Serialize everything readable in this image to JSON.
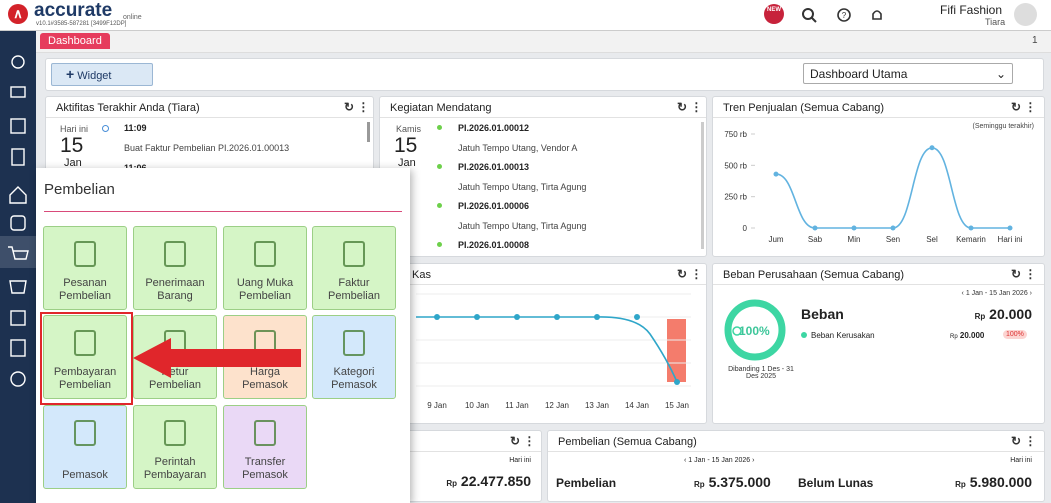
{
  "topbar": {
    "brand": "accurate",
    "brand_sub": "online",
    "version": "v10.1#3585-587281 [3499F12DP]",
    "badge": "NEW",
    "company": "Fifi Fashion",
    "user": "Tiara"
  },
  "tabs": {
    "active": "Dashboard",
    "page": "1"
  },
  "toolbar": {
    "widget_button": "Widget",
    "dashboard_select": "Dashboard Utama"
  },
  "activity": {
    "title": "Aktifitas Terakhir Anda (Tiara)",
    "day_label": "Hari ini",
    "day": "15",
    "month": "Jan",
    "items": [
      {
        "time": "11:09",
        "text": "Buat Faktur Pembelian PI.2026.01.00013"
      },
      {
        "time": "11:06"
      }
    ]
  },
  "schedule": {
    "title": "Kegiatan Mendatang",
    "day_label": "Kamis",
    "day": "15",
    "month": "Jan",
    "items": [
      {
        "code": "PI.2026.01.00012",
        "text": "Jatuh Tempo Utang, Vendor A"
      },
      {
        "code": "PI.2026.01.00013",
        "text": "Jatuh Tempo Utang, Tirta Agung"
      },
      {
        "code": "PI.2026.01.00006",
        "text": "Jatuh Tempo Utang, Tirta Agung"
      },
      {
        "code": "PI.2026.01.00008"
      }
    ]
  },
  "trend": {
    "type": "line",
    "title": "Tren Penjualan (Semua Cabang)",
    "subtitle": "(Seminggu terakhir)",
    "categories": [
      "Jum",
      "Sab",
      "Min",
      "Sen",
      "Sel",
      "Kemarin",
      "Hari ini"
    ],
    "values": [
      430000,
      0,
      0,
      0,
      640000,
      0,
      0
    ],
    "color": "#62b3e0",
    "ylim": [
      0,
      750000
    ],
    "yticks": [
      0,
      {
        "value": 250000,
        "label": "250 rb"
      },
      {
        "value": 500000,
        "label": "500 rb"
      },
      {
        "value": 750000,
        "label": "750 rb"
      }
    ]
  },
  "cash": {
    "title": "Kas",
    "categories": [
      "9 Jan",
      "10 Jan",
      "11 Jan",
      "12 Jan",
      "13 Jan",
      "14 Jan",
      "15 Jan"
    ]
  },
  "expense": {
    "title": "Beban Perusahaan (Semua Cabang)",
    "period": "1 Jan - 15 Jan 2026",
    "donut_label": "100%",
    "compare": "Dibanding 1 Des - 31 Des 2025",
    "heading": "Beban",
    "total_currency": "Rp",
    "total": "20.000",
    "item_name": "Beban Kerusakan",
    "item_currency": "Rp",
    "item_amount": "20.000",
    "item_pct": "100%"
  },
  "sales_today": {
    "label": "Hari ini",
    "currency": "Rp",
    "amount": "22.477.850"
  },
  "purchase": {
    "title": "Pembelian (Semua Cabang)",
    "period": "1 Jan - 15 Jan 2026",
    "label": "Hari ini",
    "purchase_label": "Pembelian",
    "purchase_currency": "Rp",
    "purchase_amount": "5.375.000",
    "unpaid_label": "Belum Lunas",
    "unpaid_currency": "Rp",
    "unpaid_amount": "5.980.000"
  },
  "menu": {
    "title": "Pembelian",
    "tiles": [
      {
        "label": "Pesanan Pembelian",
        "color": "#d5f5c6"
      },
      {
        "label": "Penerimaan Barang",
        "color": "#d5f5c6"
      },
      {
        "label": "Uang Muka Pembelian",
        "color": "#d5f5c6"
      },
      {
        "label": "Faktur Pembelian",
        "color": "#d5f5c6"
      },
      {
        "label": "Pembayaran Pembelian",
        "color": "#d5f5c6"
      },
      {
        "label": "Retur Pembelian",
        "color": "#d5f5c6"
      },
      {
        "label": "Harga Pemasok",
        "color": "#fde2cc"
      },
      {
        "label": "Kategori Pemasok",
        "color": "#d3e8fb"
      },
      {
        "label": "Pemasok",
        "color": "#d3e8fb"
      },
      {
        "label": "Perintah Pembayaran",
        "color": "#d5f5c6"
      },
      {
        "label": "Transfer Pemasok",
        "color": "#ead9f6"
      }
    ]
  }
}
